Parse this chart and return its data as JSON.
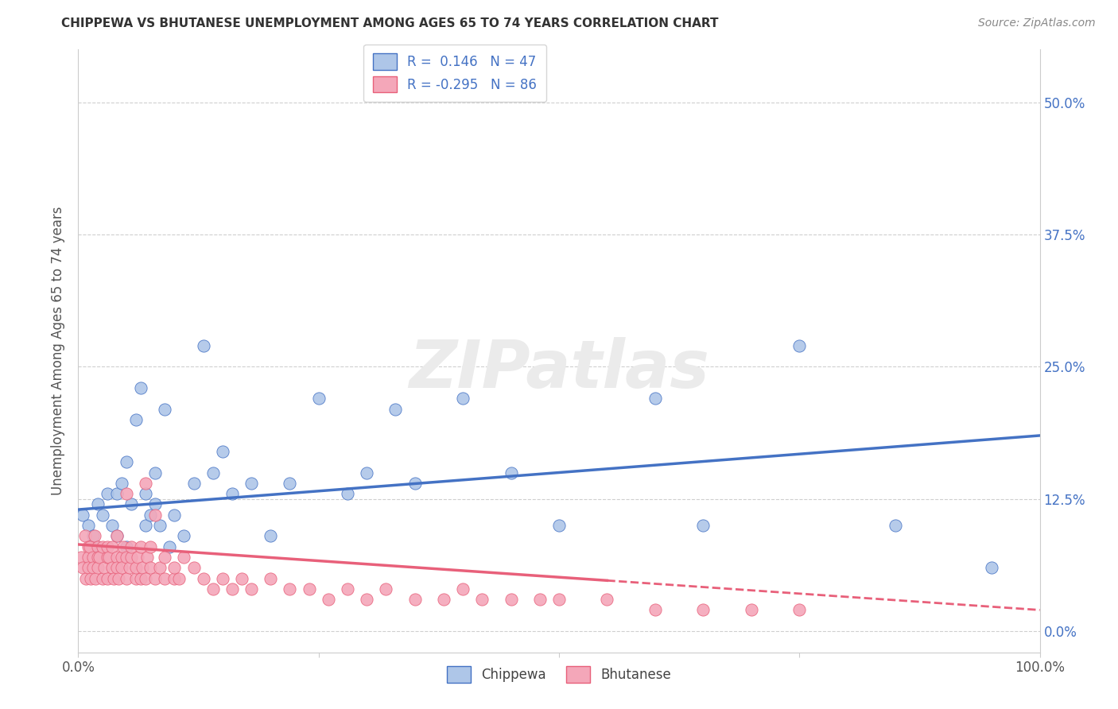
{
  "title": "CHIPPEWA VS BHUTANESE UNEMPLOYMENT AMONG AGES 65 TO 74 YEARS CORRELATION CHART",
  "source": "Source: ZipAtlas.com",
  "ylabel": "Unemployment Among Ages 65 to 74 years",
  "xlim": [
    0.0,
    1.0
  ],
  "ylim": [
    -0.02,
    0.55
  ],
  "yticks": [
    0.0,
    0.125,
    0.25,
    0.375,
    0.5
  ],
  "ytick_labels": [
    "0.0%",
    "12.5%",
    "25.0%",
    "37.5%",
    "50.0%"
  ],
  "xticks": [
    0.0,
    0.25,
    0.5,
    0.75,
    1.0
  ],
  "xtick_labels": [
    "0.0%",
    "",
    "",
    "",
    "100.0%"
  ],
  "chippewa_R": 0.146,
  "chippewa_N": 47,
  "bhutanese_R": -0.295,
  "bhutanese_N": 86,
  "chippewa_color": "#aec6e8",
  "bhutanese_color": "#f4a7b9",
  "chippewa_line_color": "#4472c4",
  "bhutanese_line_color": "#e8607a",
  "background_color": "#ffffff",
  "grid_color": "#bbbbbb",
  "watermark": "ZIPatlas",
  "chippewa_x": [
    0.005,
    0.01,
    0.015,
    0.02,
    0.02,
    0.025,
    0.03,
    0.035,
    0.04,
    0.04,
    0.045,
    0.05,
    0.05,
    0.055,
    0.06,
    0.065,
    0.07,
    0.07,
    0.075,
    0.08,
    0.08,
    0.085,
    0.09,
    0.095,
    0.1,
    0.11,
    0.12,
    0.13,
    0.14,
    0.15,
    0.16,
    0.18,
    0.2,
    0.22,
    0.25,
    0.28,
    0.3,
    0.33,
    0.35,
    0.4,
    0.45,
    0.5,
    0.6,
    0.65,
    0.75,
    0.85,
    0.95
  ],
  "chippewa_y": [
    0.11,
    0.1,
    0.09,
    0.12,
    0.08,
    0.11,
    0.13,
    0.1,
    0.09,
    0.13,
    0.14,
    0.08,
    0.16,
    0.12,
    0.2,
    0.23,
    0.1,
    0.13,
    0.11,
    0.12,
    0.15,
    0.1,
    0.21,
    0.08,
    0.11,
    0.09,
    0.14,
    0.27,
    0.15,
    0.17,
    0.13,
    0.14,
    0.09,
    0.14,
    0.22,
    0.13,
    0.15,
    0.21,
    0.14,
    0.22,
    0.15,
    0.1,
    0.22,
    0.1,
    0.27,
    0.1,
    0.06
  ],
  "bhutanese_x": [
    0.003,
    0.005,
    0.007,
    0.008,
    0.01,
    0.01,
    0.01,
    0.012,
    0.013,
    0.015,
    0.015,
    0.017,
    0.018,
    0.02,
    0.02,
    0.02,
    0.022,
    0.025,
    0.025,
    0.027,
    0.03,
    0.03,
    0.03,
    0.032,
    0.035,
    0.035,
    0.037,
    0.04,
    0.04,
    0.04,
    0.042,
    0.045,
    0.045,
    0.047,
    0.05,
    0.05,
    0.05,
    0.053,
    0.055,
    0.055,
    0.06,
    0.06,
    0.062,
    0.065,
    0.065,
    0.067,
    0.07,
    0.07,
    0.072,
    0.075,
    0.075,
    0.08,
    0.08,
    0.085,
    0.09,
    0.09,
    0.1,
    0.1,
    0.105,
    0.11,
    0.12,
    0.13,
    0.14,
    0.15,
    0.16,
    0.17,
    0.18,
    0.2,
    0.22,
    0.24,
    0.26,
    0.28,
    0.3,
    0.32,
    0.35,
    0.38,
    0.4,
    0.42,
    0.45,
    0.48,
    0.5,
    0.55,
    0.6,
    0.65,
    0.7,
    0.75
  ],
  "bhutanese_y": [
    0.07,
    0.06,
    0.09,
    0.05,
    0.08,
    0.07,
    0.06,
    0.08,
    0.05,
    0.07,
    0.06,
    0.09,
    0.05,
    0.08,
    0.07,
    0.06,
    0.07,
    0.08,
    0.05,
    0.06,
    0.07,
    0.08,
    0.05,
    0.07,
    0.06,
    0.08,
    0.05,
    0.07,
    0.06,
    0.09,
    0.05,
    0.07,
    0.06,
    0.08,
    0.05,
    0.07,
    0.13,
    0.06,
    0.07,
    0.08,
    0.05,
    0.06,
    0.07,
    0.05,
    0.08,
    0.06,
    0.14,
    0.05,
    0.07,
    0.06,
    0.08,
    0.05,
    0.11,
    0.06,
    0.05,
    0.07,
    0.05,
    0.06,
    0.05,
    0.07,
    0.06,
    0.05,
    0.04,
    0.05,
    0.04,
    0.05,
    0.04,
    0.05,
    0.04,
    0.04,
    0.03,
    0.04,
    0.03,
    0.04,
    0.03,
    0.03,
    0.04,
    0.03,
    0.03,
    0.03,
    0.03,
    0.03,
    0.02,
    0.02,
    0.02,
    0.02
  ],
  "chippewa_line_y0": 0.115,
  "chippewa_line_y1": 0.185,
  "bhutanese_line_y0": 0.082,
  "bhutanese_line_y1": 0.02
}
